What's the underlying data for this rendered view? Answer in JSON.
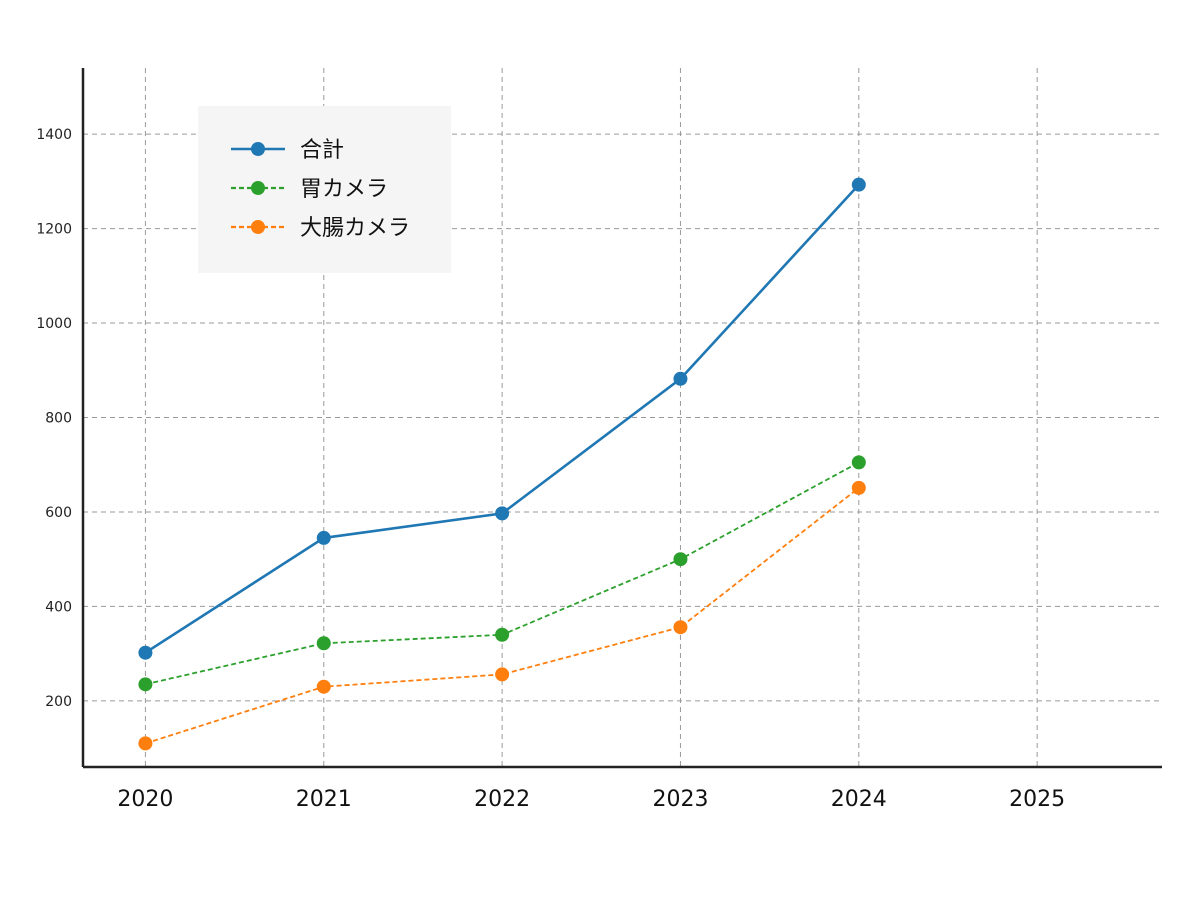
{
  "chart_data": {
    "type": "line",
    "title": "",
    "xlabel": "",
    "ylabel": "",
    "x": [
      2020,
      2021,
      2022,
      2023,
      2024
    ],
    "xticks": [
      "2020",
      "2021",
      "2022",
      "2023",
      "2024",
      "2025"
    ],
    "yticks": [
      "200",
      "400",
      "600",
      "800",
      "1000",
      "1200",
      "1400"
    ],
    "xlim": [
      2019.65,
      2025.7
    ],
    "ylim": [
      60,
      1540
    ],
    "grid": true,
    "legend_position": "top-left",
    "series": [
      {
        "name": "合計",
        "values": [
          302,
          545,
          597,
          882,
          1293
        ],
        "color": "#1f77b4",
        "style": "solid"
      },
      {
        "name": "胃カメラ",
        "values": [
          235,
          322,
          340,
          500,
          705
        ],
        "color": "#2ca02c",
        "style": "dashed"
      },
      {
        "name": "大腸カメラ",
        "values": [
          110,
          230,
          256,
          356,
          651
        ],
        "color": "#ff7f0e",
        "style": "dashed"
      }
    ]
  }
}
